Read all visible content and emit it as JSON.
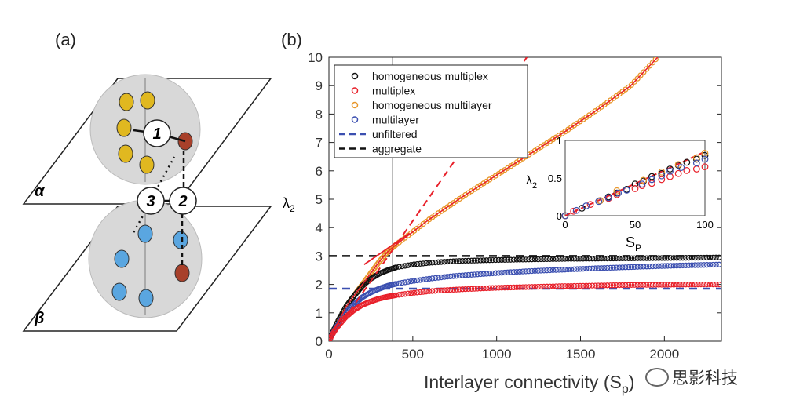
{
  "panel_a": {
    "label": "(a)",
    "layer_top": "α",
    "layer_bottom": "β",
    "nodes": [
      "1",
      "2",
      "3"
    ]
  },
  "panel_b": {
    "label": "(b)"
  },
  "watermark": "思影科技",
  "colors": {
    "black": "#111111",
    "red": "#e8202a",
    "orange": "#e8962a",
    "blue": "#3b4fb0"
  },
  "chart_data": {
    "type": "scatter",
    "xlabel": "Interlayer connectivity (S",
    "xlabel_sub": "p",
    "ylabel": "λ",
    "ylabel_sub": "2",
    "xlim": [
      0,
      2340
    ],
    "ylim": [
      0,
      10
    ],
    "xticks": [
      "0",
      "500",
      "1000",
      "1500",
      "2000"
    ],
    "xtick_values": [
      0,
      500,
      1000,
      1500,
      2000
    ],
    "yticks": [
      "0",
      "1",
      "2",
      "3",
      "4",
      "5",
      "6",
      "7",
      "8",
      "9",
      "10"
    ],
    "series": [
      {
        "name": "homogeneous multiplex",
        "color": "#111111",
        "style": "circles",
        "x": [
          0,
          25,
          50,
          100,
          150,
          200,
          250,
          300,
          350,
          400,
          500,
          600,
          700,
          800,
          1000,
          1200,
          1400,
          1600,
          1800,
          2000,
          2200,
          2340
        ],
        "y": [
          0,
          0.35,
          0.66,
          1.2,
          1.6,
          1.95,
          2.2,
          2.38,
          2.5,
          2.6,
          2.7,
          2.76,
          2.8,
          2.83,
          2.86,
          2.88,
          2.9,
          2.91,
          2.92,
          2.93,
          2.94,
          2.95
        ]
      },
      {
        "name": "multiplex",
        "color": "#e8202a",
        "style": "circles",
        "x": [
          0,
          25,
          50,
          100,
          150,
          200,
          250,
          300,
          350,
          400,
          500,
          600,
          700,
          800,
          1000,
          1200,
          1400,
          1600,
          1800,
          2000,
          2200,
          2340
        ],
        "y": [
          0,
          0.28,
          0.5,
          0.85,
          1.1,
          1.28,
          1.4,
          1.5,
          1.57,
          1.62,
          1.7,
          1.76,
          1.8,
          1.83,
          1.88,
          1.91,
          1.94,
          1.96,
          1.98,
          1.99,
          2.0,
          2.0
        ]
      },
      {
        "name": "homogeneous multilayer",
        "color": "#e8962a",
        "style": "circles",
        "x": [
          0,
          50,
          100,
          150,
          200,
          250,
          300,
          350,
          400,
          500,
          600,
          700,
          800,
          1000,
          1200,
          1400,
          1600,
          1800,
          1960
        ],
        "y": [
          0,
          0.6,
          1.2,
          1.6,
          2.0,
          2.4,
          2.8,
          3.15,
          3.4,
          3.85,
          4.3,
          4.7,
          5.1,
          5.85,
          6.6,
          7.35,
          8.15,
          9.0,
          10
        ]
      },
      {
        "name": "multilayer",
        "color": "#3b4fb0",
        "style": "circles",
        "x": [
          0,
          25,
          50,
          100,
          150,
          200,
          250,
          300,
          350,
          400,
          500,
          600,
          700,
          800,
          1000,
          1200,
          1400,
          1600,
          1800,
          2000,
          2200,
          2340
        ],
        "y": [
          0,
          0.3,
          0.55,
          1.0,
          1.3,
          1.55,
          1.72,
          1.85,
          1.95,
          2.02,
          2.12,
          2.2,
          2.27,
          2.32,
          2.4,
          2.47,
          2.52,
          2.57,
          2.61,
          2.65,
          2.68,
          2.7
        ]
      },
      {
        "name": "unfiltered",
        "color": "#3b4fb0",
        "style": "dashed",
        "y_const": 1.85
      },
      {
        "name": "aggregate",
        "color": "#111111",
        "style": "dashed",
        "y_const": 3.0
      }
    ],
    "annotations": {
      "vertical_line_x": 380,
      "red_dashed_line": {
        "x": [
          0,
          1180
        ],
        "y": [
          0,
          10
        ]
      },
      "red_solid_line": {
        "x": [
          210,
          480
        ],
        "y": [
          2.7,
          3.8
        ]
      }
    },
    "inset": {
      "xlabel": "S",
      "xlabel_sub": "P",
      "ylabel": "λ",
      "ylabel_sub": "2",
      "xlim": [
        0,
        100
      ],
      "ylim": [
        0,
        1
      ],
      "xticks": [
        "0",
        "50",
        "100"
      ],
      "xtick_values": [
        0,
        50,
        100
      ],
      "yticks": [
        "0",
        "0.5",
        "1"
      ],
      "ytick_values": [
        0,
        0.5,
        1
      ],
      "series": [
        {
          "name": "homogeneous multiplex",
          "color": "#111111",
          "x": [
            0,
            12,
            25,
            31,
            37,
            44,
            50,
            56,
            62,
            69,
            75,
            81,
            87,
            94,
            100
          ],
          "y": [
            0,
            0.1,
            0.2,
            0.25,
            0.3,
            0.35,
            0.42,
            0.46,
            0.52,
            0.56,
            0.62,
            0.67,
            0.71,
            0.75,
            0.8
          ]
        },
        {
          "name": "multiplex",
          "color": "#e8202a",
          "x": [
            0,
            6,
            18,
            31,
            37,
            50,
            55,
            62,
            69,
            75,
            81,
            87,
            94,
            100
          ],
          "y": [
            0,
            0.06,
            0.15,
            0.23,
            0.28,
            0.36,
            0.4,
            0.43,
            0.48,
            0.52,
            0.56,
            0.6,
            0.62,
            0.65
          ]
        },
        {
          "name": "homogeneous multilayer",
          "color": "#e8962a",
          "x": [
            0,
            25,
            37,
            56,
            69,
            81,
            94,
            100
          ],
          "y": [
            0,
            0.2,
            0.33,
            0.47,
            0.58,
            0.68,
            0.77,
            0.83
          ]
        },
        {
          "name": "multilayer",
          "color": "#3b4fb0",
          "x": [
            0,
            8,
            15,
            24,
            31,
            38,
            44,
            55,
            62,
            69,
            75,
            83,
            94,
            100
          ],
          "y": [
            0,
            0.07,
            0.13,
            0.19,
            0.24,
            0.3,
            0.34,
            0.42,
            0.48,
            0.53,
            0.59,
            0.64,
            0.7,
            0.75
          ]
        }
      ],
      "fit_line": {
        "x": [
          0,
          100
        ],
        "y": [
          0,
          0.85
        ]
      }
    }
  }
}
